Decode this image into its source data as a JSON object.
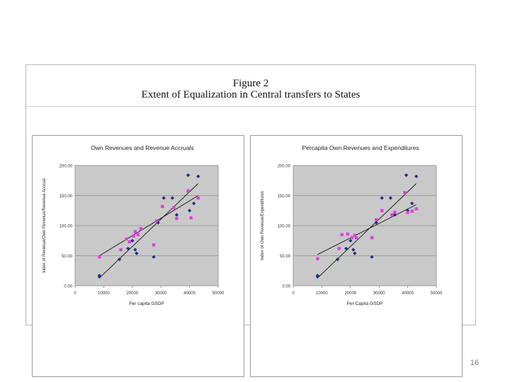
{
  "figure": {
    "number": "Figure 2",
    "title": "Extent of Equalization in Central transfers to States"
  },
  "page_number": "16",
  "chart_data": [
    {
      "type": "scatter",
      "title": "Own Revenues and Revenue Accruals",
      "xlabel": "Per capita GSDP",
      "ylabel": "Index of Revenue/Own Revenue/Revenue Accrual",
      "xlim": [
        0,
        50000
      ],
      "ylim": [
        0,
        200
      ],
      "xticks": [
        0,
        10000,
        20000,
        30000,
        40000,
        50000
      ],
      "xtick_labels": [
        "0",
        "10000",
        "20000",
        "30000",
        "40000",
        "50000"
      ],
      "yticks": [
        0,
        50,
        100,
        150,
        200
      ],
      "ytick_labels": [
        "0.00",
        "50.00",
        "100.00",
        "150.00",
        "200.00"
      ],
      "grid": true,
      "series": [
        {
          "name": "Own Revenues",
          "color": "#1f2a8a",
          "marker": "diamond",
          "x": [
            8500,
            8500,
            15500,
            18500,
            20000,
            21000,
            21500,
            27500,
            29000,
            31000,
            34000,
            35500,
            39500,
            40000,
            41500,
            43000
          ],
          "y": [
            17,
            15,
            44,
            62,
            75,
            60,
            54,
            48,
            105,
            146,
            146,
            118,
            184,
            125,
            137,
            182
          ],
          "trend": {
            "x": [
              8500,
              43000
            ],
            "y": [
              13,
              170
            ]
          }
        },
        {
          "name": "Revenue Accruals",
          "color": "#e040e0",
          "marker": "square",
          "x": [
            8500,
            16000,
            18000,
            19000,
            20500,
            21000,
            22000,
            23000,
            27500,
            28500,
            30500,
            34500,
            35500,
            39500,
            40500,
            43000
          ],
          "y": [
            48,
            60,
            78,
            73,
            83,
            90,
            85,
            95,
            68,
            108,
            132,
            130,
            112,
            158,
            113,
            146
          ],
          "trend": {
            "x": [
              8500,
              43000
            ],
            "y": [
              50,
              150
            ]
          }
        }
      ]
    },
    {
      "type": "scatter",
      "title": "Percapita Own Revenues and Expenditures",
      "xlabel": "Per Capita GSDP",
      "ylabel": "Index of Own Revenue/Expenditures",
      "xlim": [
        0,
        50000
      ],
      "ylim": [
        0,
        200
      ],
      "xticks": [
        0,
        10000,
        20000,
        30000,
        40000,
        50000
      ],
      "xtick_labels": [
        "0",
        "10000",
        "20000",
        "30000",
        "40000",
        "50000"
      ],
      "yticks": [
        0,
        50,
        100,
        150,
        200
      ],
      "ytick_labels": [
        "0.00",
        "50.00",
        "100.00",
        "150.00",
        "200.00"
      ],
      "grid": true,
      "series": [
        {
          "name": "Own Revenues",
          "color": "#1f2a8a",
          "marker": "diamond",
          "x": [
            8500,
            8500,
            15500,
            18500,
            20000,
            21000,
            21500,
            27500,
            29000,
            31000,
            34000,
            35500,
            39500,
            40000,
            41500,
            43000
          ],
          "y": [
            17,
            15,
            44,
            62,
            75,
            60,
            54,
            48,
            105,
            146,
            146,
            118,
            184,
            125,
            137,
            182
          ],
          "trend": {
            "x": [
              8500,
              43000
            ],
            "y": [
              13,
              170
            ]
          }
        },
        {
          "name": "Expenditures",
          "color": "#e040e0",
          "marker": "square",
          "x": [
            8500,
            16000,
            17000,
            19000,
            20500,
            21500,
            22000,
            27500,
            29000,
            31000,
            34500,
            35500,
            39000,
            40000,
            41500,
            43000
          ],
          "y": [
            45,
            62,
            85,
            86,
            80,
            84,
            80,
            80,
            110,
            125,
            118,
            122,
            155,
            122,
            124,
            128
          ],
          "trend": {
            "x": [
              8500,
              43000
            ],
            "y": [
              52,
              135
            ]
          }
        }
      ]
    }
  ]
}
